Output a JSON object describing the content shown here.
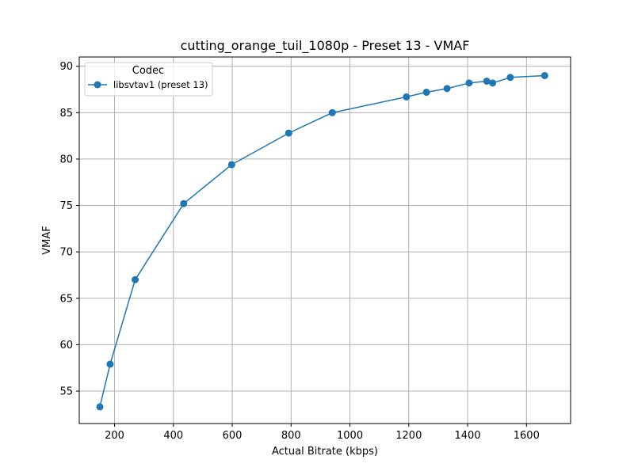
{
  "chart_data": {
    "type": "line",
    "title": "cutting_orange_tuil_1080p - Preset 13 - VMAF",
    "xlabel": "Actual Bitrate (kbps)",
    "ylabel": "VMAF",
    "xlim": [
      80,
      1750
    ],
    "ylim": [
      51.5,
      91.0
    ],
    "xticks": [
      200,
      400,
      600,
      800,
      1000,
      1200,
      1400,
      1600
    ],
    "yticks": [
      55,
      60,
      65,
      70,
      75,
      80,
      85,
      90
    ],
    "grid": true,
    "legend": {
      "title": "Codec",
      "placement": "upper-left"
    },
    "series": [
      {
        "name": "libsvtav1 (preset 13)",
        "color": "#1f77b4",
        "marker": "circle",
        "points": [
          {
            "x": 150,
            "y": 53.3
          },
          {
            "x": 185,
            "y": 57.9
          },
          {
            "x": 270,
            "y": 67.0
          },
          {
            "x": 435,
            "y": 75.2
          },
          {
            "x": 598,
            "y": 79.4
          },
          {
            "x": 792,
            "y": 82.8
          },
          {
            "x": 940,
            "y": 85.0
          },
          {
            "x": 1192,
            "y": 86.7
          },
          {
            "x": 1260,
            "y": 87.2
          },
          {
            "x": 1330,
            "y": 87.6
          },
          {
            "x": 1405,
            "y": 88.2
          },
          {
            "x": 1465,
            "y": 88.4
          },
          {
            "x": 1485,
            "y": 88.2
          },
          {
            "x": 1545,
            "y": 88.8
          },
          {
            "x": 1662,
            "y": 89.0
          }
        ]
      }
    ]
  }
}
